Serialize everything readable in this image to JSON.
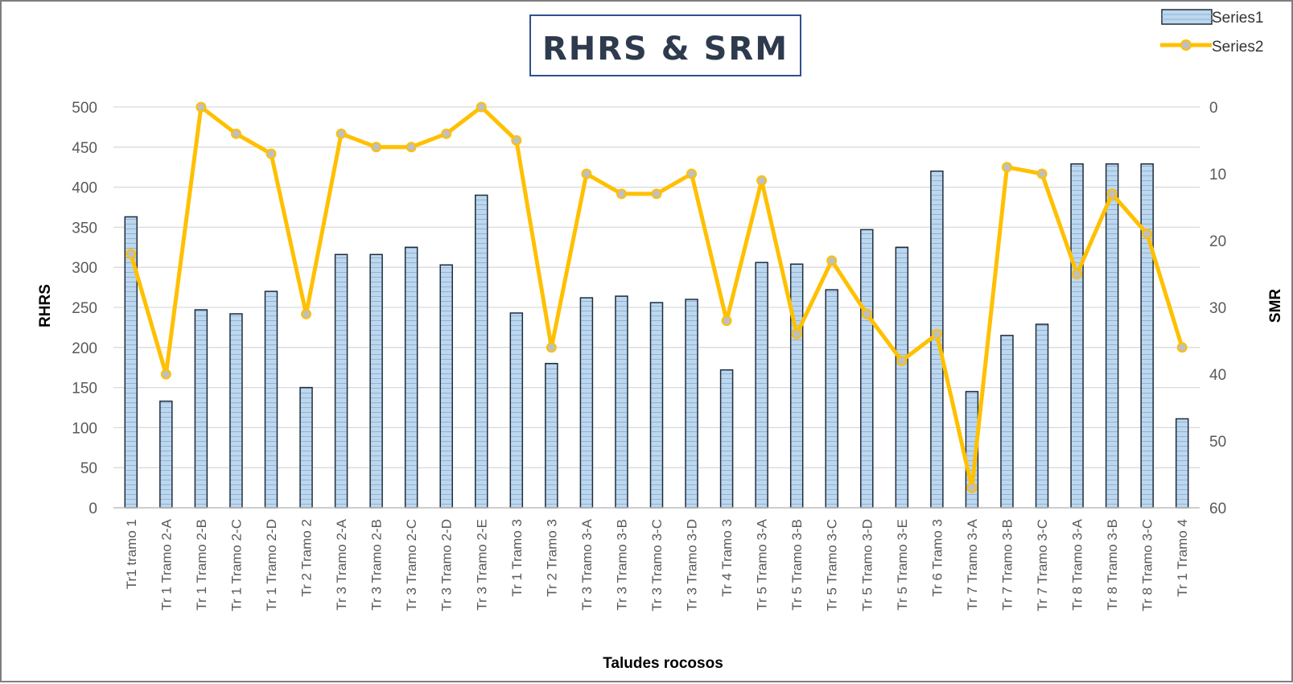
{
  "chart_data": {
    "type": "bar",
    "title": "RHRS & SRM",
    "xlabel": "Taludes rocosos",
    "ylabel": "RHRS",
    "y2label": "SMR",
    "ylim": [
      0,
      500
    ],
    "y2lim": [
      60,
      0
    ],
    "yticks": [
      "0",
      "50",
      "100",
      "150",
      "200",
      "250",
      "300",
      "350",
      "400",
      "450",
      "500"
    ],
    "y2ticks": [
      "0",
      "10",
      "20",
      "30",
      "40",
      "50",
      "60"
    ],
    "grid": true,
    "legend_position": "top-right",
    "categories": [
      "Tr1 tramo 1",
      "Tr 1 Tramo 2-A",
      "Tr 1 Tramo 2-B",
      "Tr 1 Tramo 2-C",
      "Tr 1 Tramo 2-D",
      "Tr 2 Tramo 2",
      "Tr 3 Tramo 2-A",
      "Tr 3 Tramo 2-B",
      "Tr 3 Tramo 2-C",
      "Tr 3 Tramo 2-D",
      "Tr 3 Tramo 2-E",
      "Tr 1 Tramo 3",
      "Tr 2 Tramo 3",
      "Tr 3 Tramo 3-A",
      "Tr 3 Tramo 3-B",
      "Tr 3 Tramo 3-C",
      "Tr 3 Tramo 3-D",
      "Tr 4 Tramo 3",
      "Tr 5 Tramo 3-A",
      "Tr 5 Tramo 3-B",
      "Tr 5 Tramo 3-C",
      "Tr 5 Tramo 3-D",
      "Tr 5 Tramo 3-E",
      "Tr 6 Tramo 3",
      "Tr 7 Tramo 3-A",
      "Tr 7 Tramo 3-B",
      "Tr 7 Tramo 3-C",
      "Tr 8 Tramo 3-A",
      "Tr 8 Tramo 3-B",
      "Tr 8 Tramo 3-C",
      "Tr 1 Tramo 4"
    ],
    "series": [
      {
        "name": "Series1",
        "type": "bar",
        "axis": "left",
        "color": "#bdd7ee",
        "edge_color": "#1f2d3d",
        "values": [
          363,
          133,
          247,
          242,
          270,
          150,
          316,
          316,
          325,
          303,
          390,
          243,
          180,
          262,
          264,
          256,
          260,
          172,
          306,
          304,
          272,
          347,
          325,
          420,
          145,
          215,
          229,
          429,
          429,
          429,
          111
        ]
      },
      {
        "name": "Series2",
        "type": "line",
        "axis": "right",
        "color": "#ffc000",
        "marker_color": "#bfbfbf",
        "values": [
          22,
          40,
          0,
          4,
          7,
          31,
          4,
          6,
          6,
          4,
          0,
          5,
          36,
          10,
          13,
          13,
          10,
          32,
          11,
          34,
          23,
          31,
          38,
          34,
          57,
          9,
          10,
          25,
          13,
          19,
          36
        ]
      }
    ]
  }
}
